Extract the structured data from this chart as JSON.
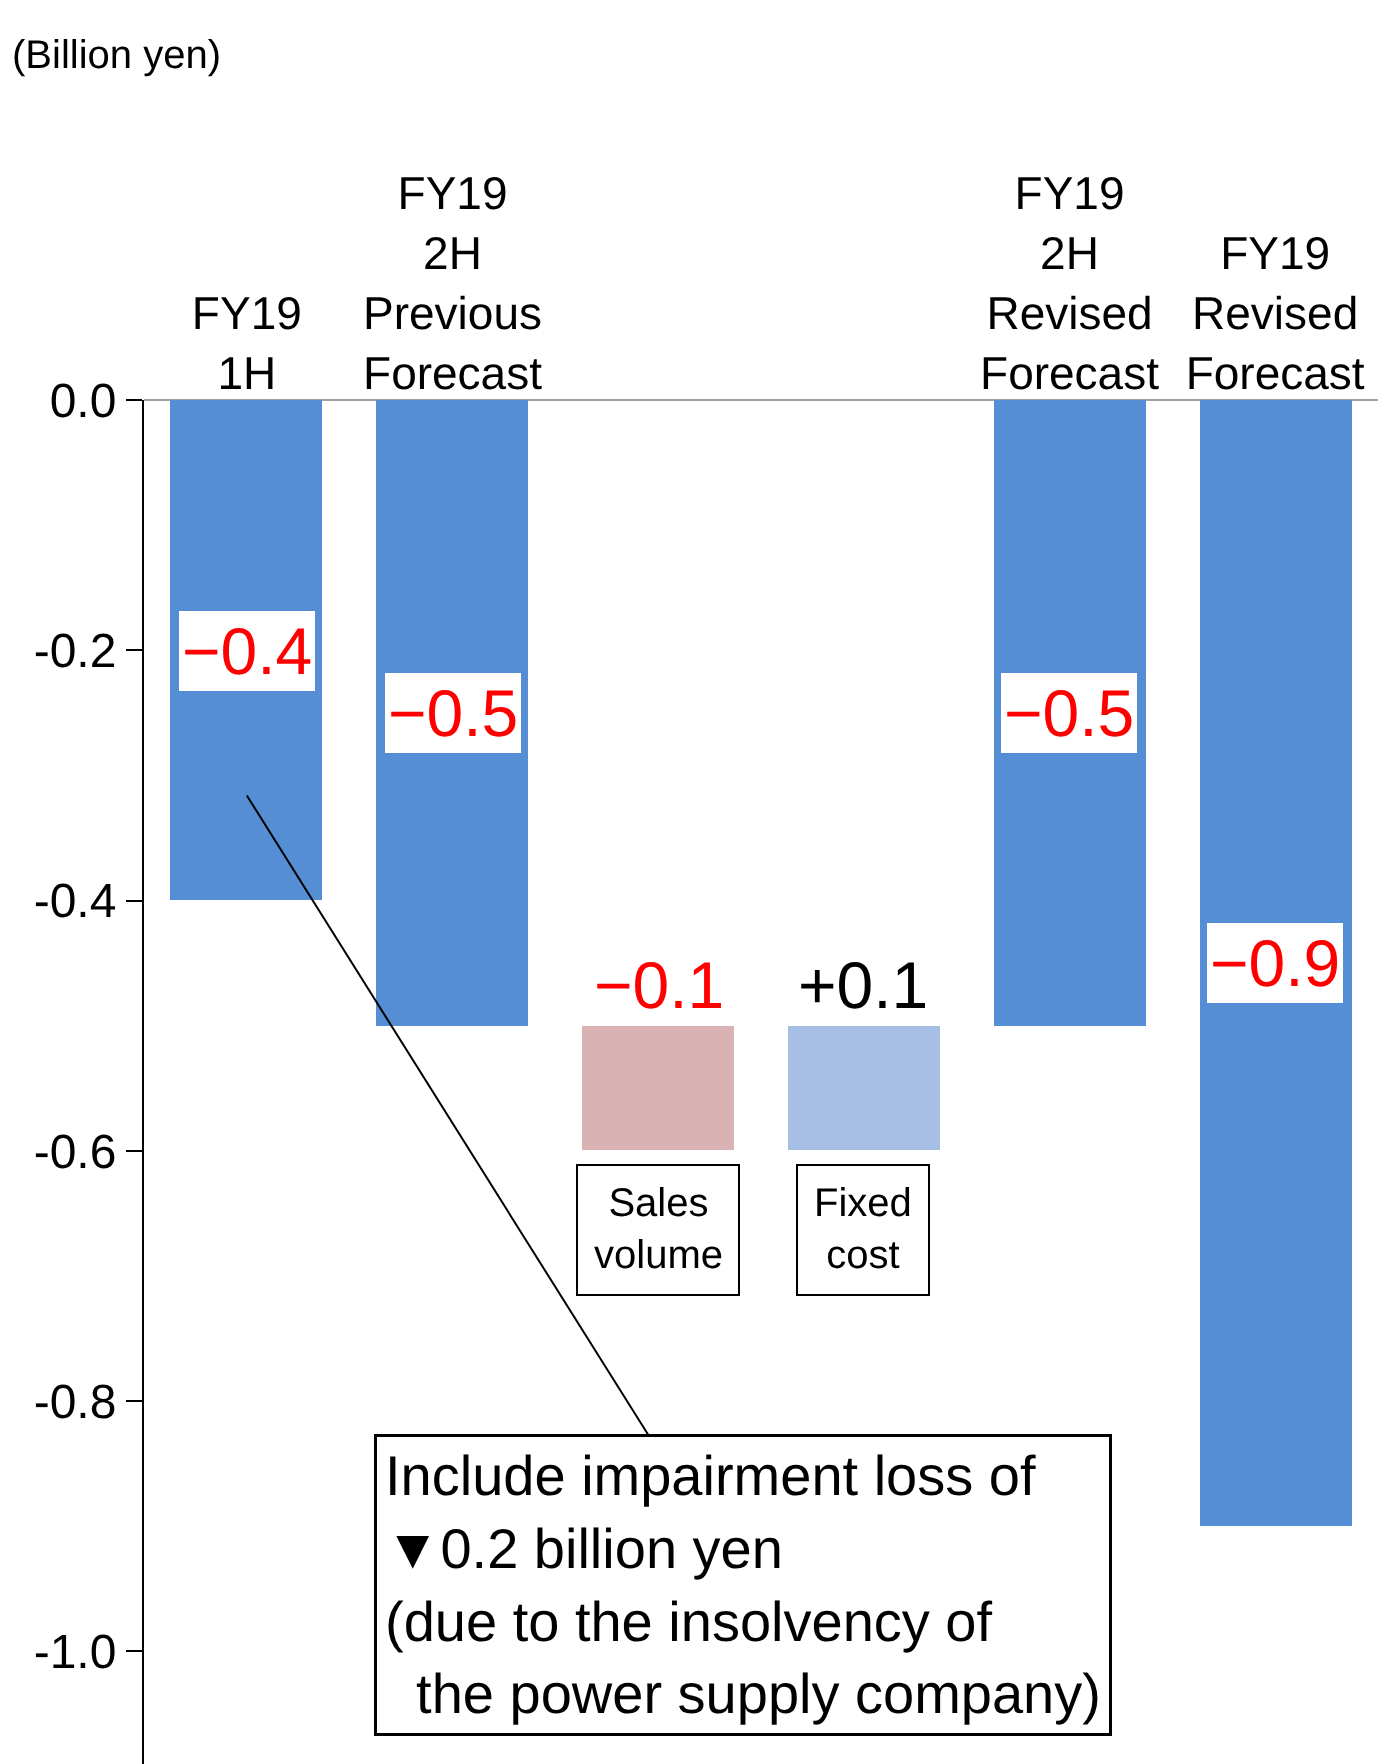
{
  "chart_data": {
    "type": "bar",
    "ylabel": "(Billion yen)",
    "categories": [
      "FY19\n1H",
      "FY19\n2H\nPrevious\nForecast",
      "Sales\nvolume",
      "Fixed\ncost",
      "FY19\n2H\nRevised\nForecast",
      "FY19\nRevised\nForecast"
    ],
    "values": [
      -0.4,
      -0.5,
      -0.1,
      0.1,
      -0.5,
      -0.9
    ],
    "base": [
      0,
      0,
      -0.5,
      -0.6,
      0,
      0
    ],
    "colors": [
      "#558ed5",
      "#558ed5",
      "#d9b3b3",
      "#a6bfe3",
      "#558ed5",
      "#558ed5"
    ],
    "value_labels": [
      "−0.4",
      "−0.5",
      "−0.1",
      "+0.1",
      "−0.5",
      "−0.9"
    ],
    "ylim": [
      -1.09,
      0.0
    ],
    "yticks": [
      {
        "value": 0,
        "label": "0.0"
      },
      {
        "value": -0.2,
        "label": "-0.2"
      },
      {
        "value": -0.4,
        "label": "-0.4"
      },
      {
        "value": -0.6,
        "label": "-0.6"
      },
      {
        "value": -0.8,
        "label": "-0.8"
      },
      {
        "value": -1.0,
        "label": "-1.0"
      }
    ],
    "grid": false,
    "annotations": [
      "Include impairment loss of\n▼0.2 billion yen\n(due to the insolvency of\n  the power supply company)"
    ]
  }
}
